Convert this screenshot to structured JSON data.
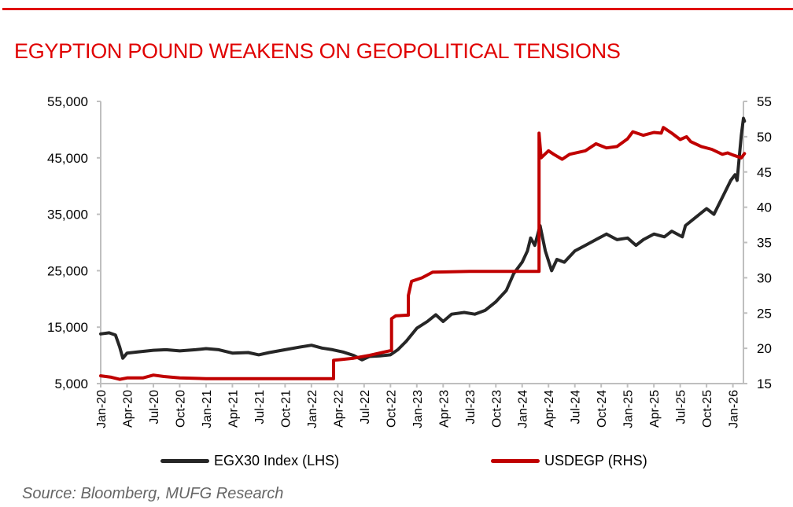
{
  "chart_data": {
    "type": "line",
    "title": "EGYPTION POUND WEAKENS ON GEOPOLITICAL TENSIONS",
    "xlabel": "",
    "ylabel_left": "",
    "ylabel_right": "",
    "xlim": [
      2020.0,
      2026.1
    ],
    "ylim_left": [
      5000,
      55000
    ],
    "ylim_right": [
      15,
      55
    ],
    "yticks_left": [
      "5,000",
      "15,000",
      "25,000",
      "35,000",
      "45,000",
      "55,000"
    ],
    "yticks_left_values": [
      5000,
      15000,
      25000,
      35000,
      45000,
      55000
    ],
    "yticks_right": [
      "15",
      "20",
      "25",
      "30",
      "35",
      "40",
      "45",
      "50",
      "55"
    ],
    "yticks_right_values": [
      15,
      20,
      25,
      30,
      35,
      40,
      45,
      50,
      55
    ],
    "xticks": [
      "Jan-20",
      "Apr-20",
      "Jul-20",
      "Oct-20",
      "Jan-21",
      "Apr-21",
      "Jul-21",
      "Oct-21",
      "Jan-22",
      "Apr-22",
      "Jul-22",
      "Oct-22",
      "Jan-23",
      "Apr-23",
      "Jul-23",
      "Oct-23",
      "Jan-24",
      "Apr-24",
      "Jul-24",
      "Oct-24",
      "Jan-25",
      "Apr-25",
      "Jul-25",
      "Oct-25",
      "Jan-26"
    ],
    "grid": false,
    "legend_position": "bottom",
    "series": [
      {
        "name": "EGX30 Index (LHS)",
        "axis": "left",
        "color": "#262626",
        "points": [
          [
            2020.0,
            13800
          ],
          [
            2020.08,
            14000
          ],
          [
            2020.14,
            13600
          ],
          [
            2020.18,
            11500
          ],
          [
            2020.21,
            9500
          ],
          [
            2020.25,
            10400
          ],
          [
            2020.35,
            10600
          ],
          [
            2020.5,
            10900
          ],
          [
            2020.62,
            11000
          ],
          [
            2020.75,
            10800
          ],
          [
            2020.9,
            11000
          ],
          [
            2021.0,
            11200
          ],
          [
            2021.12,
            11000
          ],
          [
            2021.25,
            10400
          ],
          [
            2021.4,
            10500
          ],
          [
            2021.5,
            10100
          ],
          [
            2021.6,
            10500
          ],
          [
            2021.75,
            11000
          ],
          [
            2021.9,
            11500
          ],
          [
            2022.0,
            11800
          ],
          [
            2022.1,
            11300
          ],
          [
            2022.2,
            11000
          ],
          [
            2022.3,
            10600
          ],
          [
            2022.4,
            10000
          ],
          [
            2022.48,
            9200
          ],
          [
            2022.55,
            9800
          ],
          [
            2022.65,
            9900
          ],
          [
            2022.75,
            10100
          ],
          [
            2022.82,
            11000
          ],
          [
            2022.9,
            12500
          ],
          [
            2023.0,
            14800
          ],
          [
            2023.1,
            16000
          ],
          [
            2023.18,
            17200
          ],
          [
            2023.25,
            16000
          ],
          [
            2023.33,
            17300
          ],
          [
            2023.45,
            17600
          ],
          [
            2023.55,
            17300
          ],
          [
            2023.65,
            18000
          ],
          [
            2023.75,
            19500
          ],
          [
            2023.85,
            21500
          ],
          [
            2023.92,
            24500
          ],
          [
            2024.0,
            26500
          ],
          [
            2024.05,
            28500
          ],
          [
            2024.08,
            30800
          ],
          [
            2024.12,
            29500
          ],
          [
            2024.17,
            33000
          ],
          [
            2024.22,
            28500
          ],
          [
            2024.28,
            25000
          ],
          [
            2024.33,
            27000
          ],
          [
            2024.4,
            26500
          ],
          [
            2024.5,
            28500
          ],
          [
            2024.6,
            29500
          ],
          [
            2024.7,
            30500
          ],
          [
            2024.8,
            31500
          ],
          [
            2024.9,
            30500
          ],
          [
            2025.0,
            30800
          ],
          [
            2025.08,
            29500
          ],
          [
            2025.15,
            30500
          ],
          [
            2025.25,
            31500
          ],
          [
            2025.35,
            31000
          ],
          [
            2025.42,
            32000
          ],
          [
            2025.52,
            31000
          ],
          [
            2025.55,
            33000
          ],
          [
            2025.65,
            34500
          ],
          [
            2025.75,
            36000
          ],
          [
            2025.82,
            35000
          ],
          [
            2025.9,
            38000
          ],
          [
            2025.98,
            41000
          ],
          [
            2026.02,
            42000
          ],
          [
            2026.04,
            41000
          ],
          [
            2026.06,
            45000
          ],
          [
            2026.08,
            49000
          ],
          [
            2026.1,
            52000
          ],
          [
            2026.11,
            51500
          ]
        ]
      },
      {
        "name": "USDEGP (RHS)",
        "axis": "right",
        "color": "#c00000",
        "points": [
          [
            2020.0,
            16.1
          ],
          [
            2020.1,
            15.9
          ],
          [
            2020.18,
            15.6
          ],
          [
            2020.25,
            15.8
          ],
          [
            2020.4,
            15.8
          ],
          [
            2020.5,
            16.2
          ],
          [
            2020.6,
            16.0
          ],
          [
            2020.75,
            15.8
          ],
          [
            2021.0,
            15.7
          ],
          [
            2021.5,
            15.7
          ],
          [
            2022.0,
            15.7
          ],
          [
            2022.21,
            15.7
          ],
          [
            2022.21,
            18.3
          ],
          [
            2022.4,
            18.6
          ],
          [
            2022.55,
            19.0
          ],
          [
            2022.7,
            19.5
          ],
          [
            2022.76,
            19.7
          ],
          [
            2022.76,
            24.2
          ],
          [
            2022.8,
            24.6
          ],
          [
            2022.92,
            24.7
          ],
          [
            2022.92,
            27.5
          ],
          [
            2022.95,
            29.5
          ],
          [
            2023.05,
            30.0
          ],
          [
            2023.15,
            30.8
          ],
          [
            2023.5,
            30.9
          ],
          [
            2024.0,
            30.9
          ],
          [
            2024.16,
            30.9
          ],
          [
            2024.16,
            50.5
          ],
          [
            2024.18,
            47.0
          ],
          [
            2024.25,
            48.0
          ],
          [
            2024.3,
            47.5
          ],
          [
            2024.38,
            46.8
          ],
          [
            2024.45,
            47.5
          ],
          [
            2024.6,
            48.0
          ],
          [
            2024.7,
            49.0
          ],
          [
            2024.8,
            48.4
          ],
          [
            2024.9,
            48.6
          ],
          [
            2025.0,
            49.7
          ],
          [
            2025.05,
            50.7
          ],
          [
            2025.15,
            50.2
          ],
          [
            2025.25,
            50.6
          ],
          [
            2025.32,
            50.5
          ],
          [
            2025.34,
            51.3
          ],
          [
            2025.42,
            50.5
          ],
          [
            2025.5,
            49.6
          ],
          [
            2025.56,
            50.0
          ],
          [
            2025.6,
            49.3
          ],
          [
            2025.7,
            48.6
          ],
          [
            2025.8,
            48.2
          ],
          [
            2025.9,
            47.5
          ],
          [
            2025.95,
            47.7
          ],
          [
            2026.0,
            47.4
          ],
          [
            2026.08,
            47.0
          ],
          [
            2026.11,
            47.6
          ]
        ]
      }
    ]
  },
  "source": "Source: Bloomberg, MUFG Research"
}
